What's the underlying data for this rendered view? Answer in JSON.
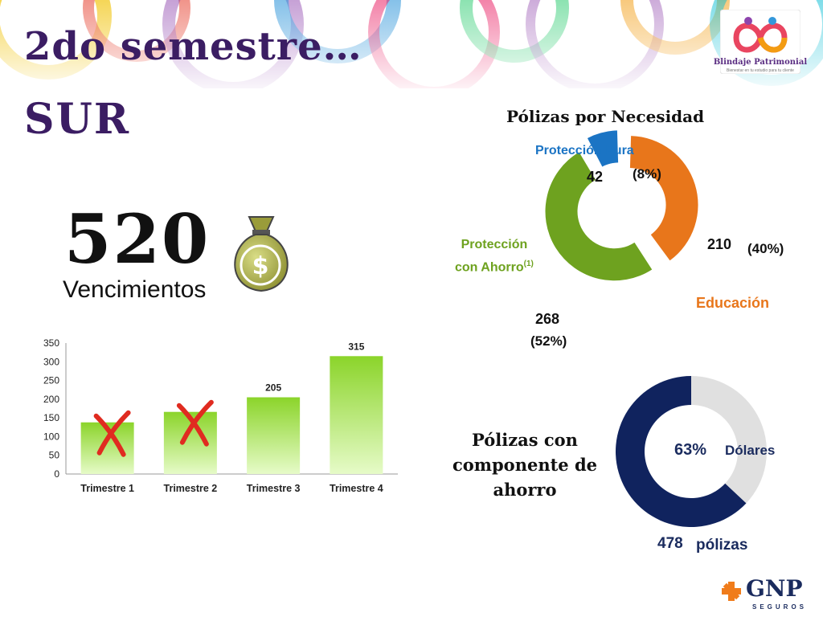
{
  "title": {
    "line1": "2do semestre…",
    "line2": "SUR"
  },
  "logo": {
    "name": "Blindaje Patrimonial",
    "tagline": "Bienestar en tu estudio para tu cliente"
  },
  "highlight": {
    "value": "520",
    "label": "Vencimientos",
    "icon": "money-bag-icon"
  },
  "chart_data": [
    {
      "type": "bar",
      "categories": [
        "Trimestre 1",
        "Trimestre 2",
        "Trimestre 3",
        "Trimestre 4"
      ],
      "values": [
        138,
        166,
        205,
        315
      ],
      "data_labels": [
        "",
        "",
        "205",
        "315"
      ],
      "crossed_out": [
        true,
        true,
        false,
        false
      ],
      "ylim": [
        0,
        350
      ],
      "yticks": [
        0,
        50,
        100,
        150,
        200,
        250,
        300,
        350
      ],
      "bar_color_top": "#8bd42a",
      "bar_color_bottom": "#e6fbc8",
      "mark_color": "#e02b20"
    },
    {
      "type": "pie",
      "title": "Pólizas por Necesidad",
      "slices": [
        {
          "name": "Educación",
          "value": 210,
          "percent": "(40%)",
          "color": "#e8761b"
        },
        {
          "name": "Protección con Ahorro",
          "footnote": "(1)",
          "value": 268,
          "percent": "(52%)",
          "color": "#6ea21f"
        },
        {
          "name": "Protección Pura",
          "value": 42,
          "percent": "(8%)",
          "color": "#1b74c4"
        }
      ]
    },
    {
      "type": "pie",
      "title": "Pólizas con componente de ahorro",
      "slices": [
        {
          "name": "Dólares",
          "value": 63,
          "percent": "63%",
          "color": "#10235e"
        },
        {
          "name": "",
          "value": 37,
          "color": "#e0e0e0"
        }
      ],
      "total": "478",
      "total_label": "pólizas"
    }
  ],
  "footer_logo": {
    "text": "GNP",
    "sub": "SEGUROS"
  }
}
